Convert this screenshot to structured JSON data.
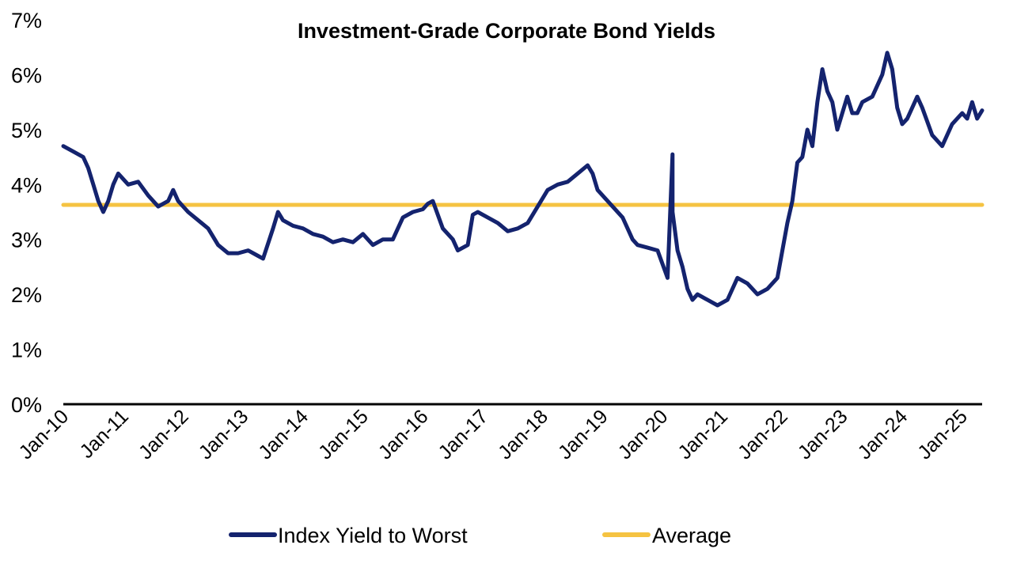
{
  "chart_data": {
    "type": "line",
    "title": "Investment-Grade Corporate Bond Yields",
    "xlabel": "",
    "ylabel": "",
    "ylim": [
      0,
      7
    ],
    "y_ticks": [
      "0%",
      "1%",
      "2%",
      "3%",
      "4%",
      "5%",
      "6%",
      "7%"
    ],
    "x_ticks": [
      "Jan-10",
      "Jan-11",
      "Jan-12",
      "Jan-13",
      "Jan-14",
      "Jan-15",
      "Jan-16",
      "Jan-17",
      "Jan-18",
      "Jan-19",
      "Jan-20",
      "Jan-21",
      "Jan-22",
      "Jan-23",
      "Jan-24",
      "Jan-25"
    ],
    "grid": false,
    "legend_position": "bottom",
    "series": [
      {
        "name": "Index Yield to Worst",
        "color": "#14236e",
        "x": [
          "2010-01",
          "2010-03",
          "2010-05",
          "2010-06",
          "2010-07",
          "2010-08",
          "2010-09",
          "2010-10",
          "2010-11",
          "2010-12",
          "2011-02",
          "2011-04",
          "2011-06",
          "2011-08",
          "2011-10",
          "2011-11",
          "2011-12",
          "2012-02",
          "2012-04",
          "2012-06",
          "2012-08",
          "2012-10",
          "2012-12",
          "2013-02",
          "2013-04",
          "2013-05",
          "2013-07",
          "2013-08",
          "2013-09",
          "2013-11",
          "2014-01",
          "2014-03",
          "2014-05",
          "2014-07",
          "2014-09",
          "2014-11",
          "2015-01",
          "2015-03",
          "2015-05",
          "2015-07",
          "2015-09",
          "2015-11",
          "2016-01",
          "2016-02",
          "2016-03",
          "2016-05",
          "2016-07",
          "2016-08",
          "2016-10",
          "2016-11",
          "2016-12",
          "2017-02",
          "2017-04",
          "2017-06",
          "2017-08",
          "2017-10",
          "2017-12",
          "2018-02",
          "2018-04",
          "2018-06",
          "2018-08",
          "2018-10",
          "2018-11",
          "2018-12",
          "2019-01",
          "2019-03",
          "2019-05",
          "2019-07",
          "2019-08",
          "2019-10",
          "2019-12",
          "2020-02",
          "2020-03",
          "2020-03",
          "2020-04",
          "2020-05",
          "2020-06",
          "2020-07",
          "2020-08",
          "2020-10",
          "2020-12",
          "2021-02",
          "2021-04",
          "2021-06",
          "2021-08",
          "2021-10",
          "2021-12",
          "2022-01",
          "2022-02",
          "2022-03",
          "2022-04",
          "2022-05",
          "2022-06",
          "2022-07",
          "2022-08",
          "2022-09",
          "2022-10",
          "2022-11",
          "2022-12",
          "2023-01",
          "2023-02",
          "2023-03",
          "2023-04",
          "2023-05",
          "2023-07",
          "2023-08",
          "2023-09",
          "2023-10",
          "2023-11",
          "2023-12",
          "2024-01",
          "2024-02",
          "2024-04",
          "2024-05",
          "2024-07",
          "2024-09",
          "2024-11",
          "2025-01",
          "2025-02",
          "2025-03",
          "2025-04",
          "2025-05"
        ],
        "values": [
          4.7,
          4.6,
          4.5,
          4.3,
          4.0,
          3.7,
          3.5,
          3.7,
          4.0,
          4.2,
          4.0,
          4.05,
          3.8,
          3.6,
          3.7,
          3.9,
          3.7,
          3.5,
          3.35,
          3.2,
          2.9,
          2.75,
          2.75,
          2.8,
          2.7,
          2.65,
          3.2,
          3.5,
          3.35,
          3.25,
          3.2,
          3.1,
          3.05,
          2.95,
          3.0,
          2.95,
          3.1,
          2.9,
          3.0,
          3.0,
          3.4,
          3.5,
          3.55,
          3.65,
          3.7,
          3.2,
          3.0,
          2.8,
          2.9,
          3.45,
          3.5,
          3.4,
          3.3,
          3.15,
          3.2,
          3.3,
          3.6,
          3.9,
          4.0,
          4.05,
          4.2,
          4.35,
          4.2,
          3.9,
          3.8,
          3.6,
          3.4,
          3.0,
          2.9,
          2.85,
          2.8,
          2.3,
          4.55,
          3.5,
          2.8,
          2.5,
          2.1,
          1.9,
          2.0,
          1.9,
          1.8,
          1.9,
          2.3,
          2.2,
          2.0,
          2.1,
          2.3,
          2.8,
          3.3,
          3.7,
          4.4,
          4.5,
          5.0,
          4.7,
          5.5,
          6.1,
          5.7,
          5.5,
          5.0,
          5.3,
          5.6,
          5.3,
          5.3,
          5.5,
          5.6,
          5.8,
          6.0,
          6.4,
          6.1,
          5.4,
          5.1,
          5.2,
          5.6,
          5.4,
          4.9,
          4.7,
          5.1,
          5.3,
          5.2,
          5.5,
          5.2,
          5.35
        ]
      },
      {
        "name": "Average",
        "color": "#f5c342",
        "x": [
          "2010-01",
          "2025-05"
        ],
        "values": [
          3.63,
          3.63
        ]
      }
    ]
  }
}
